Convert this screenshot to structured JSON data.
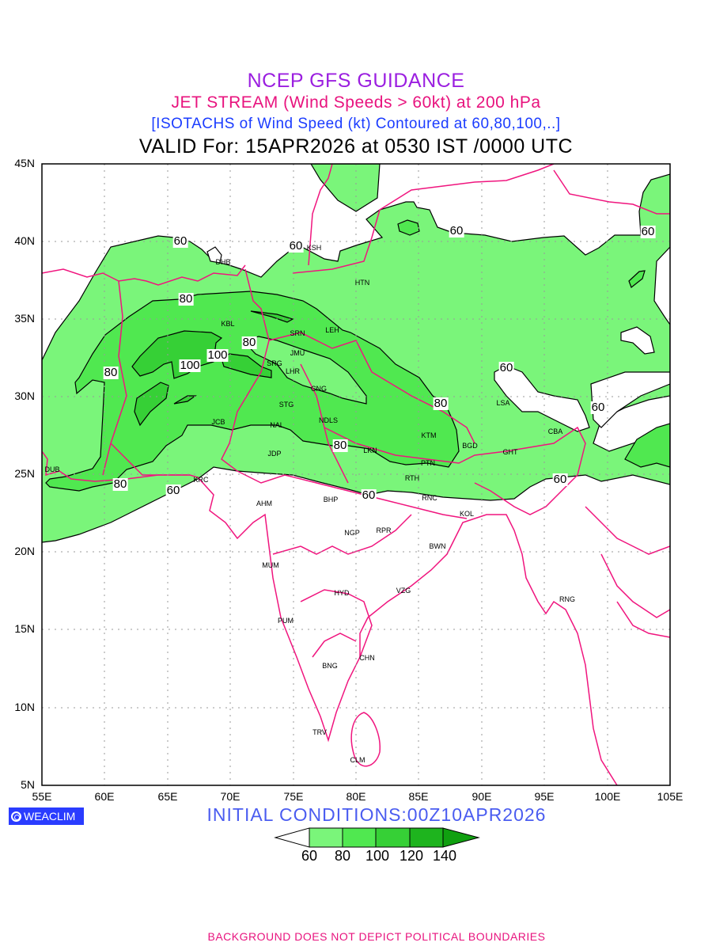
{
  "header": {
    "title": "NCEP GFS GUIDANCE",
    "subtitle": "JET STREAM (Wind Speeds > 60kt) at 200 hPa",
    "description": "[ISOTACHS of Wind Speed (kt) Contoured at 60,80,100,..]",
    "valid": "VALID For: 15APR2026 at 0530 IST /0000 UTC"
  },
  "axes": {
    "lat_labels": [
      "45N",
      "40N",
      "35N",
      "30N",
      "25N",
      "20N",
      "15N",
      "10N",
      "5N"
    ],
    "lon_labels": [
      "55E",
      "60E",
      "65E",
      "70E",
      "75E",
      "80E",
      "85E",
      "90E",
      "95E",
      "100E",
      "105E"
    ]
  },
  "cities": [
    "DHB",
    "KSH",
    "HTN",
    "KBL",
    "SRN",
    "LEH",
    "JMU",
    "SRG",
    "LHR",
    "CNG",
    "STG",
    "NDLS",
    "JCB",
    "NAL",
    "KTM",
    "BGD",
    "GHT",
    "CBA",
    "LSA",
    "JDP",
    "LKN",
    "PTN",
    "DUB",
    "KRC",
    "RTH",
    "RNC",
    "AHM",
    "BHP",
    "KOL",
    "NGP",
    "RPR",
    "BWN",
    "MUM",
    "HYD",
    "VZG",
    "RNG",
    "PUM",
    "CHN",
    "BNG",
    "TRV",
    "CLM"
  ],
  "contour_labels": [
    "60",
    "60",
    "60",
    "60",
    "60",
    "60",
    "60",
    "60",
    "60",
    "80",
    "80",
    "80",
    "80",
    "80",
    "80",
    "100",
    "100"
  ],
  "colors": {
    "shade_60_80": "#7af57a",
    "shade_80_100": "#50e850",
    "shade_100_120": "#36d036",
    "shade_120_140": "#1eb41e",
    "shade_140_plus": "#10a010",
    "boundaries": "#f0157e"
  },
  "logo": "WEACLIM",
  "initial_conditions": "INITIAL  CONDITIONS:00Z10APR2026",
  "colorbar": {
    "labels": [
      "60",
      "80",
      "100",
      "120",
      "140"
    ],
    "unit": "kt"
  },
  "footer": "BACKGROUND DOES NOT DEPICT POLITICAL BOUNDARIES"
}
